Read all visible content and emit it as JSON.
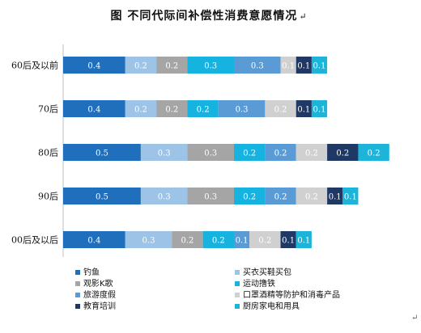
{
  "title": "图  不同代际间补偿性消费意愿情况",
  "title_mark": "↵",
  "corner_mark": "↵",
  "chart_data": {
    "type": "bar",
    "orientation": "horizontal",
    "stacked": true,
    "title": "图  不同代际间补偿性消费意愿情况",
    "categories": [
      "60后及以前",
      "70后",
      "80后",
      "90后",
      "00后及以后"
    ],
    "xlim": [
      0,
      2.2
    ],
    "grid": false,
    "legend_position": "bottom",
    "series": [
      {
        "name": "钓鱼",
        "color": "#1f6fbd",
        "values": [
          0.4,
          0.4,
          0.5,
          0.5,
          0.4
        ]
      },
      {
        "name": "买衣买鞋买包",
        "color": "#9dc3e6",
        "values": [
          0.2,
          0.2,
          0.3,
          0.3,
          0.3
        ]
      },
      {
        "name": "观影K歌",
        "color": "#a5a5a5",
        "values": [
          0.2,
          0.2,
          0.3,
          0.3,
          0.2
        ]
      },
      {
        "name": "运动撸铁",
        "color": "#17b3e0",
        "values": [
          0.3,
          0.2,
          0.2,
          0.2,
          0.2
        ]
      },
      {
        "name": "旅游度假",
        "color": "#5b9bd5",
        "values": [
          0.3,
          0.3,
          0.2,
          0.2,
          0.1
        ]
      },
      {
        "name": "口罩酒精等防护和消毒产品",
        "color": "#d0d0d0",
        "values": [
          0.1,
          0.2,
          0.2,
          0.2,
          0.2
        ]
      },
      {
        "name": "教育培训",
        "color": "#203864",
        "values": [
          0.1,
          0.1,
          0.2,
          0.1,
          0.1
        ]
      },
      {
        "name": "厨房家电和用具",
        "color": "#1cb4d8",
        "values": [
          0.1,
          0.1,
          0.2,
          0.1,
          0.1
        ]
      }
    ]
  }
}
